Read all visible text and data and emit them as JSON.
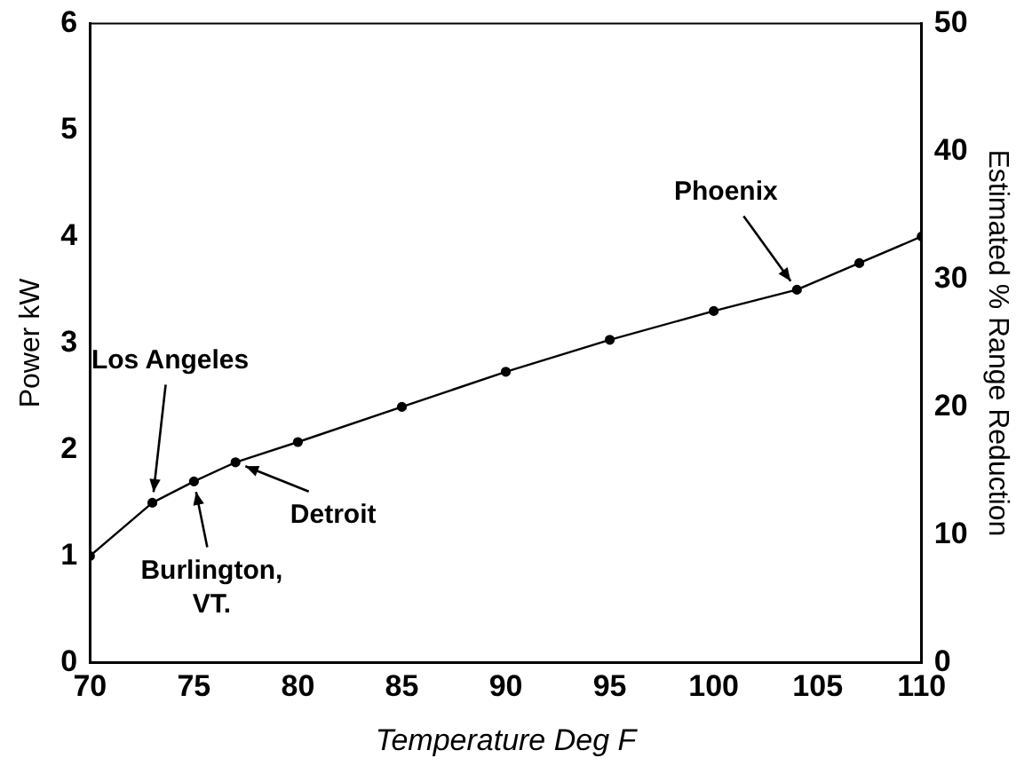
{
  "chart_data": {
    "type": "line",
    "xlabel": "Temperature Deg F",
    "ylabel": "Power kW",
    "y2label": "Estimated % Range Reduction",
    "x": [
      70,
      73,
      75,
      77,
      80,
      85,
      90,
      95,
      100,
      104,
      107,
      110
    ],
    "series": [
      {
        "color": "#000000",
        "values": [
          1.0,
          1.5,
          1.7,
          1.88,
          2.07,
          2.4,
          2.73,
          3.03,
          3.3,
          3.5,
          3.75,
          4.0
        ]
      }
    ],
    "xlim": [
      70,
      110
    ],
    "xticks": [
      70,
      75,
      80,
      85,
      90,
      95,
      100,
      105,
      110
    ],
    "ylim": [
      0,
      6
    ],
    "yticks": [
      0,
      1,
      2,
      3,
      4,
      5,
      6
    ],
    "y2lim": [
      0,
      50
    ],
    "y2ticks": [
      0,
      10,
      20,
      30,
      40,
      50
    ],
    "annotations": [
      {
        "text": "Los Angeles",
        "x": 73,
        "y": 1.5
      },
      {
        "text": "Burlington, VT.",
        "x": 75,
        "y": 1.7
      },
      {
        "text": "Detroit",
        "x": 77,
        "y": 1.88
      },
      {
        "text": "Phoenix",
        "x": 104,
        "y": 3.5
      }
    ],
    "marker": "circle",
    "line_style": "solid",
    "grid": false,
    "legend": false
  }
}
